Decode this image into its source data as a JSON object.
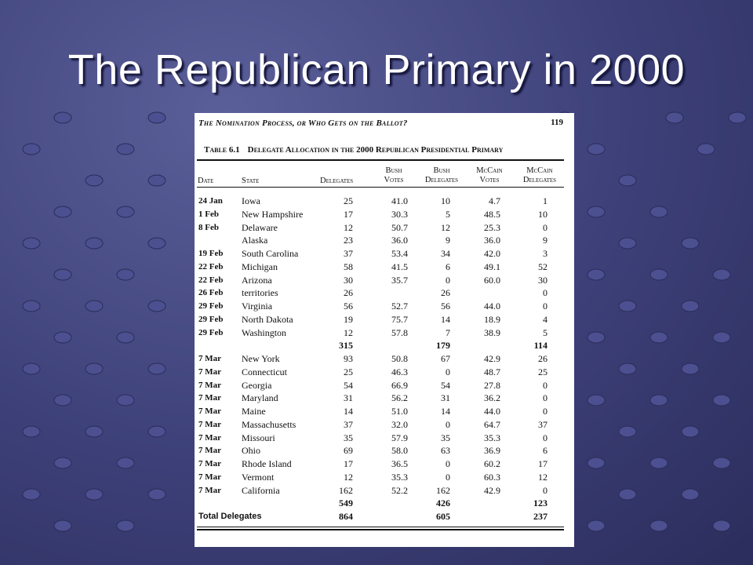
{
  "slide": {
    "title": "The Republican Primary in 2000"
  },
  "page": {
    "running_head": "The Nomination Process, or Who Gets on the Ballot?",
    "page_number": "119",
    "table_number": "Table 6.1",
    "table_title": "Delegate Allocation in the 2000 Republican Presidential Primary"
  },
  "headers": {
    "date": "Date",
    "state": "State",
    "delegates": "Delegates",
    "bush_votes": "Bush Votes",
    "bush_delegates": "Bush Delegates",
    "mccain_votes": "McCain Votes",
    "mccain_delegates": "McCain Delegates"
  },
  "rows": [
    {
      "date": "24 Jan",
      "state": "Iowa",
      "del": "25",
      "bv": "41.0",
      "bd": "10",
      "mv": "4.7",
      "md": "1"
    },
    {
      "date": "1 Feb",
      "state": "New Hampshire",
      "del": "17",
      "bv": "30.3",
      "bd": "5",
      "mv": "48.5",
      "md": "10"
    },
    {
      "date": "8 Feb",
      "state": "Delaware",
      "del": "12",
      "bv": "50.7",
      "bd": "12",
      "mv": "25.3",
      "md": "0"
    },
    {
      "date": "",
      "state": "Alaska",
      "del": "23",
      "bv": "36.0",
      "bd": "9",
      "mv": "36.0",
      "md": "9"
    },
    {
      "date": "19 Feb",
      "state": "South Carolina",
      "del": "37",
      "bv": "53.4",
      "bd": "34",
      "mv": "42.0",
      "md": "3"
    },
    {
      "date": "22 Feb",
      "state": "Michigan",
      "del": "58",
      "bv": "41.5",
      "bd": "6",
      "mv": "49.1",
      "md": "52"
    },
    {
      "date": "22 Feb",
      "state": "Arizona",
      "del": "30",
      "bv": "35.7",
      "bd": "0",
      "mv": "60.0",
      "md": "30"
    },
    {
      "date": "26 Feb",
      "state": "territories",
      "del": "26",
      "bv": "",
      "bd": "26",
      "mv": "",
      "md": "0"
    },
    {
      "date": "29 Feb",
      "state": "Virginia",
      "del": "56",
      "bv": "52.7",
      "bd": "56",
      "mv": "44.0",
      "md": "0"
    },
    {
      "date": "29 Feb",
      "state": "North Dakota",
      "del": "19",
      "bv": "75.7",
      "bd": "14",
      "mv": "18.9",
      "md": "4"
    },
    {
      "date": "29 Feb",
      "state": "Washington",
      "del": "12",
      "bv": "57.8",
      "bd": "7",
      "mv": "38.9",
      "md": "5"
    },
    {
      "date": "",
      "state": "",
      "del": "315",
      "bv": "",
      "bd": "179",
      "mv": "",
      "md": "114",
      "subtotal": true
    },
    {
      "date": "7 Mar",
      "state": "New York",
      "del": "93",
      "bv": "50.8",
      "bd": "67",
      "mv": "42.9",
      "md": "26"
    },
    {
      "date": "7 Mar",
      "state": "Connecticut",
      "del": "25",
      "bv": "46.3",
      "bd": "0",
      "mv": "48.7",
      "md": "25"
    },
    {
      "date": "7 Mar",
      "state": "Georgia",
      "del": "54",
      "bv": "66.9",
      "bd": "54",
      "mv": "27.8",
      "md": "0"
    },
    {
      "date": "7 Mar",
      "state": "Maryland",
      "del": "31",
      "bv": "56.2",
      "bd": "31",
      "mv": "36.2",
      "md": "0"
    },
    {
      "date": "7 Mar",
      "state": "Maine",
      "del": "14",
      "bv": "51.0",
      "bd": "14",
      "mv": "44.0",
      "md": "0"
    },
    {
      "date": "7 Mar",
      "state": "Massachusetts",
      "del": "37",
      "bv": "32.0",
      "bd": "0",
      "mv": "64.7",
      "md": "37"
    },
    {
      "date": "7 Mar",
      "state": "Missouri",
      "del": "35",
      "bv": "57.9",
      "bd": "35",
      "mv": "35.3",
      "md": "0"
    },
    {
      "date": "7 Mar",
      "state": "Ohio",
      "del": "69",
      "bv": "58.0",
      "bd": "63",
      "mv": "36.9",
      "md": "6"
    },
    {
      "date": "7 Mar",
      "state": "Rhode Island",
      "del": "17",
      "bv": "36.5",
      "bd": "0",
      "mv": "60.2",
      "md": "17"
    },
    {
      "date": "7 Mar",
      "state": "Vermont",
      "del": "12",
      "bv": "35.3",
      "bd": "0",
      "mv": "60.3",
      "md": "12"
    },
    {
      "date": "7 Mar",
      "state": "California",
      "del": "162",
      "bv": "52.2",
      "bd": "162",
      "mv": "42.9",
      "md": "0"
    },
    {
      "date": "",
      "state": "",
      "del": "549",
      "bv": "",
      "bd": "426",
      "mv": "",
      "md": "123",
      "subtotal": true
    },
    {
      "date": "",
      "state": "Total Delegates",
      "del": "864",
      "bv": "",
      "bd": "605",
      "mv": "",
      "md": "237",
      "subtotal": true,
      "total": true
    }
  ]
}
